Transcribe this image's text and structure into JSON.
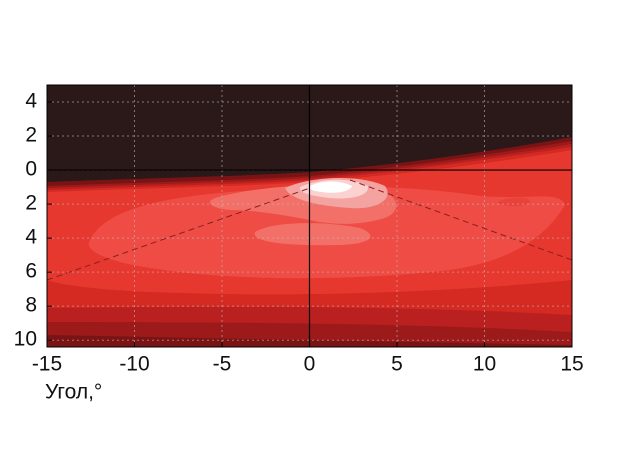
{
  "chart_data": {
    "type": "contour",
    "x_label": "Угол,°",
    "xlim": [
      -15,
      15
    ],
    "xticks": [
      -15,
      -10,
      -5,
      0,
      5,
      10,
      15
    ],
    "ylim": [
      -10.4,
      5
    ],
    "yticks": [
      4,
      2,
      0,
      {
        "value": -2,
        "label": "2"
      },
      {
        "value": -4,
        "label": "4"
      },
      {
        "value": -6,
        "label": "6"
      },
      {
        "value": -8,
        "label": "8"
      },
      {
        "value": -10,
        "label": "10"
      }
    ],
    "grid": true
  }
}
